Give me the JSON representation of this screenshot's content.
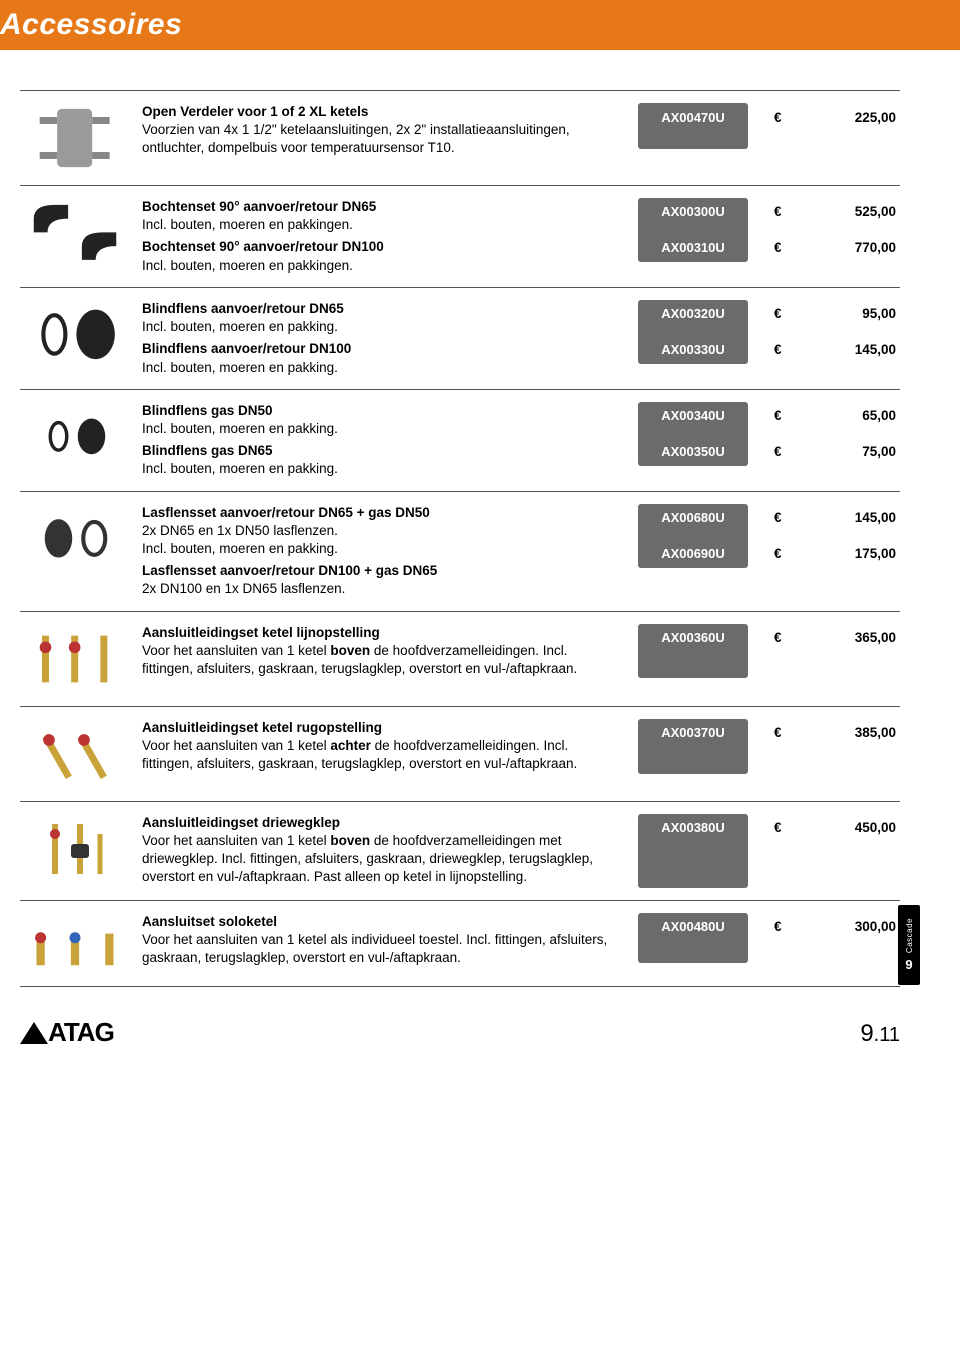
{
  "header": {
    "title": "Accessoires"
  },
  "colors": {
    "accent": "#e77817",
    "pill_bg": "#6b6b6b",
    "pill_fg": "#ffffff",
    "text": "#000000",
    "rule": "#555555"
  },
  "currency": "€",
  "rows": [
    {
      "items": [
        {
          "title": "Open Verdeler voor 1 of 2 XL ketels",
          "sub": "Voorzien van 4x 1 1/2\" ketelaansluitingen, 2x 2\" installatieaansluitingen, ontluchter, dompelbuis voor temperatuursensor T10.",
          "code": "AX00470U",
          "price": "225,00"
        }
      ]
    },
    {
      "items": [
        {
          "title": "Bochtenset 90° aanvoer/retour DN65",
          "sub": "Incl. bouten, moeren en pakkingen.",
          "code": "AX00300U",
          "price": "525,00"
        },
        {
          "title": "Bochtenset 90° aanvoer/retour DN100",
          "sub": "Incl. bouten, moeren en pakkingen.",
          "code": "AX00310U",
          "price": "770,00"
        }
      ]
    },
    {
      "items": [
        {
          "title": "Blindflens aanvoer/retour DN65",
          "sub": "Incl. bouten, moeren en pakking.",
          "code": "AX00320U",
          "price": "95,00"
        },
        {
          "title": "Blindflens aanvoer/retour DN100",
          "sub": "Incl. bouten, moeren en pakking.",
          "code": "AX00330U",
          "price": "145,00"
        }
      ]
    },
    {
      "items": [
        {
          "title": "Blindflens gas DN50",
          "sub": "Incl. bouten, moeren en pakking.",
          "code": "AX00340U",
          "price": "65,00"
        },
        {
          "title": "Blindflens gas DN65",
          "sub": "Incl. bouten, moeren en pakking.",
          "code": "AX00350U",
          "price": "75,00"
        }
      ]
    },
    {
      "items": [
        {
          "title": "Lasflensset aanvoer/retour DN65 + gas DN50",
          "sub": "2x DN65 en 1x DN50 lasflenzen.\nIncl. bouten, moeren en pakking.",
          "code": "AX00680U",
          "price": "145,00"
        },
        {
          "title": "Lasflensset aanvoer/retour DN100 + gas DN65",
          "sub": "2x DN100 en 1x DN65 lasflenzen.",
          "code": "AX00690U",
          "price": "175,00"
        }
      ]
    },
    {
      "items": [
        {
          "title": "Aansluitleidingset ketel lijnopstelling",
          "sub_html": "Voor het aansluiten van 1 ketel <b>boven</b> de hoofdverzamelleidingen. Incl. fittingen, afsluiters, gaskraan, terugslagklep, overstort en vul-/aftapkraan.",
          "code": "AX00360U",
          "price": "365,00"
        }
      ]
    },
    {
      "items": [
        {
          "title": "Aansluitleidingset ketel rugopstelling",
          "sub_html": "Voor het aansluiten van 1 ketel <b>achter</b> de hoofdverzamelleidingen. Incl. fittingen, afsluiters, gaskraan, terugslagklep, overstort en vul-/aftapkraan.",
          "code": "AX00370U",
          "price": "385,00"
        }
      ]
    },
    {
      "items": [
        {
          "title": "Aansluitleidingset driewegklep",
          "sub_html": "Voor het aansluiten van 1 ketel <b>boven</b> de hoofdverzamelleidingen met driewegklep. Incl. fittingen, afsluiters, gaskraan, driewegklep, terugslagklep, overstort en vul-/aftapkraan. Past alleen op ketel in lijnopstelling.",
          "code": "AX00380U",
          "price": "450,00"
        }
      ]
    },
    {
      "items": [
        {
          "title": "Aansluitset soloketel",
          "sub": "Voor het aansluiten van 1 ketel als individueel toestel. Incl. fittingen, afsluiters, gaskraan, terugslagklep, overstort en vul-/aftapkraan.",
          "code": "AX00480U",
          "price": "300,00"
        }
      ]
    }
  ],
  "side_tab": {
    "label": "Cascade",
    "number": "9"
  },
  "footer": {
    "logo_text": "ATAG",
    "page_major": "9",
    "page_minor": "11"
  }
}
